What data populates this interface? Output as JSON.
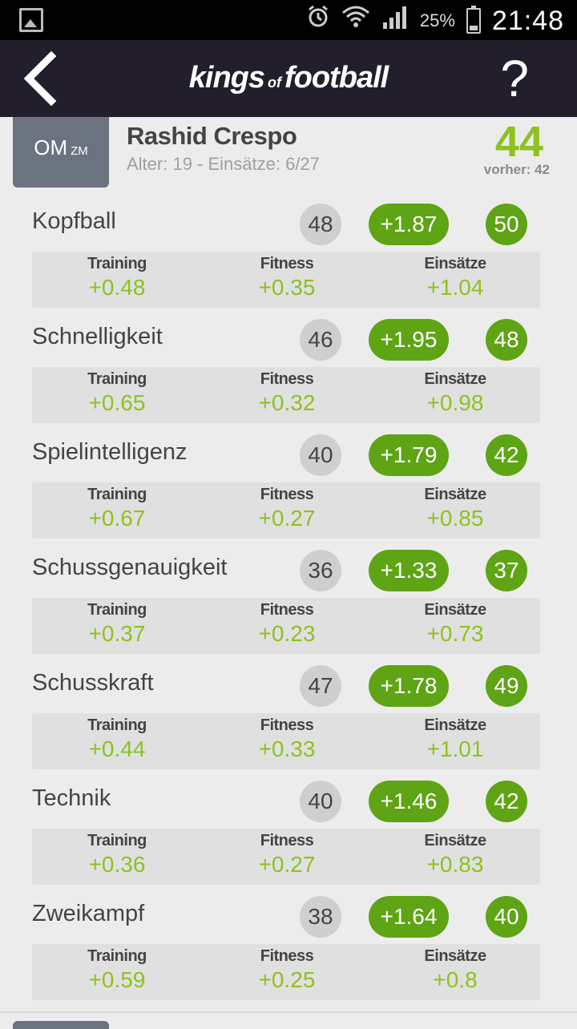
{
  "status_bar": {
    "battery_percent": "25%",
    "time": "21:48",
    "icons": [
      "gallery-icon",
      "alarm-icon",
      "wifi-icon",
      "signal-icon",
      "battery-charging-icon"
    ]
  },
  "app_bar": {
    "logo_part1": "kings",
    "logo_part2": "of",
    "logo_part3": "football",
    "help_label": "?"
  },
  "player": {
    "position": "OM",
    "position_sub": "ZM",
    "name": "Rashid Crespo",
    "meta": "Alter: 19 - Einsätze: 6/27",
    "rating": "44",
    "previous_rating": "vorher: 42"
  },
  "labels": {
    "training": "Training",
    "fitness": "Fitness",
    "einsaetze": "Einsätze"
  },
  "skills": [
    {
      "name": "Kopfball",
      "old": "48",
      "delta": "+1.87",
      "new": "50",
      "training": "+0.48",
      "fitness": "+0.35",
      "einsaetze": "+1.04"
    },
    {
      "name": "Schnelligkeit",
      "old": "46",
      "delta": "+1.95",
      "new": "48",
      "training": "+0.65",
      "fitness": "+0.32",
      "einsaetze": "+0.98"
    },
    {
      "name": "Spielintelligenz",
      "old": "40",
      "delta": "+1.79",
      "new": "42",
      "training": "+0.67",
      "fitness": "+0.27",
      "einsaetze": "+0.85"
    },
    {
      "name": "Schussgenauigkeit",
      "old": "36",
      "delta": "+1.33",
      "new": "37",
      "training": "+0.37",
      "fitness": "+0.23",
      "einsaetze": "+0.73"
    },
    {
      "name": "Schusskraft",
      "old": "47",
      "delta": "+1.78",
      "new": "49",
      "training": "+0.44",
      "fitness": "+0.33",
      "einsaetze": "+1.01"
    },
    {
      "name": "Technik",
      "old": "40",
      "delta": "+1.46",
      "new": "42",
      "training": "+0.36",
      "fitness": "+0.27",
      "einsaetze": "+0.83"
    },
    {
      "name": "Zweikampf",
      "old": "38",
      "delta": "+1.64",
      "new": "40",
      "training": "+0.59",
      "fitness": "+0.25",
      "einsaetze": "+0.8"
    }
  ],
  "colors": {
    "accent_green": "#5ea414",
    "value_green": "#8dc21f",
    "app_bar": "#231e2b",
    "badge_gray": "#6c7380"
  }
}
